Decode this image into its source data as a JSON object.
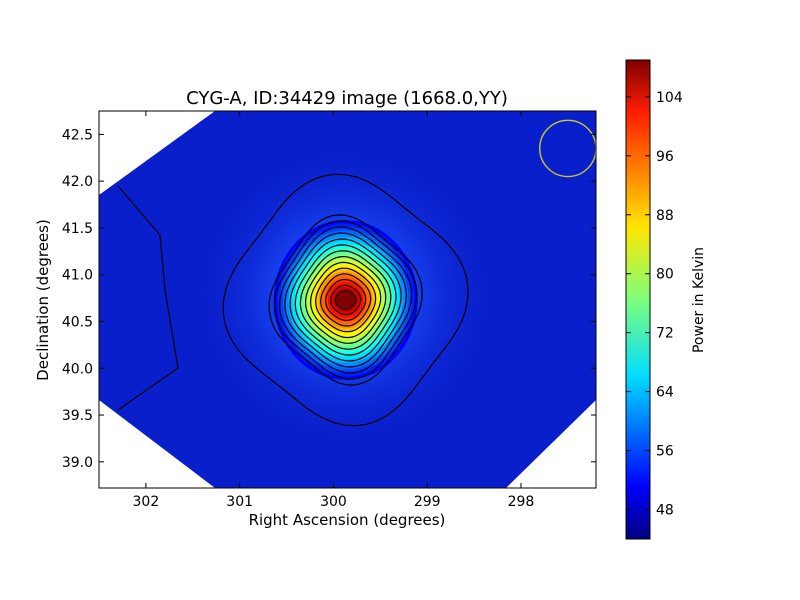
{
  "chart_data": {
    "type": "heatmap",
    "title": "CYG-A, ID:34429 image (1668.0,YY)",
    "xlabel": "Right Ascension (degrees)",
    "ylabel": "Declination (degrees)",
    "x_ticks": [
      "302",
      "301",
      "300",
      "299",
      "298"
    ],
    "y_ticks": [
      "39.0",
      "39.5",
      "40.0",
      "40.5",
      "41.0",
      "41.5",
      "42.0",
      "42.5"
    ],
    "xlim": [
      302.5,
      297.2
    ],
    "ylim": [
      38.72,
      42.75
    ],
    "x_inverted": true,
    "colormap": "jet",
    "colorbar": {
      "label": "Power in Kelvin",
      "range": [
        44,
        109
      ],
      "ticks": [
        "48",
        "56",
        "64",
        "72",
        "80",
        "88",
        "96",
        "104"
      ]
    },
    "peak": {
      "ra": 299.87,
      "dec": 40.73,
      "value": 109
    },
    "background_value": 44,
    "beam_circle": {
      "ra": 297.5,
      "dec": 42.35,
      "radius_ra": 0.3,
      "color": "#c8c832"
    },
    "contour_color": "#000000",
    "grid": false
  }
}
